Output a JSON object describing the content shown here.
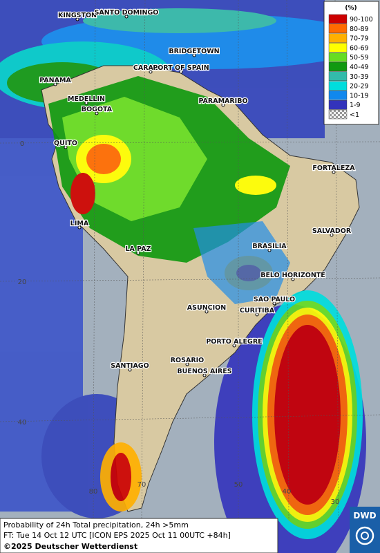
{
  "legend": {
    "title": "(%)",
    "items": [
      {
        "label": "90-100",
        "color": "#cc0000"
      },
      {
        "label": "80-89",
        "color": "#ff6a00"
      },
      {
        "label": "70-79",
        "color": "#ffb000"
      },
      {
        "label": "60-69",
        "color": "#ffff00"
      },
      {
        "label": "50-59",
        "color": "#66dd22"
      },
      {
        "label": "40-49",
        "color": "#119911"
      },
      {
        "label": "30-39",
        "color": "#33bbaa"
      },
      {
        "label": "20-29",
        "color": "#00dddd"
      },
      {
        "label": "10-19",
        "color": "#1188ee"
      },
      {
        "label": "1-9",
        "color": "#3333bb"
      },
      {
        "label": "<1",
        "color": "#bbbbbb"
      }
    ]
  },
  "cities": [
    "KINGSTON",
    "SANTO DOMINGO",
    "BRIDGETOWN",
    "CARACAS",
    "PORT OF SPAIN",
    "PANAMA",
    "MEDELLIN",
    "BOGOTA",
    "PARAMARIBO",
    "QUITO",
    "FORTALEZA",
    "LIMA",
    "SALVADOR",
    "LA PAZ",
    "BRASILIA",
    "BELO HORIZONTE",
    "SAO PAULO",
    "ASUNCION",
    "CURITIBA",
    "PORTO ALEGRE",
    "ROSARIO",
    "BUENOS AIRES",
    "SANTIAGO"
  ],
  "latitude_labels": [
    0,
    20,
    40
  ],
  "longitude_labels": [
    80,
    70,
    50,
    40,
    30
  ],
  "caption": {
    "line1": "Probability of 24h Total precipitation, 24h >5mm",
    "line2": "FT: Tue 14 Oct 12 UTC [ICON EPS 2025 Oct 11 00UTC +84h]",
    "copyright": "©2025 Deutscher Wetterdienst"
  },
  "logo": "DWD"
}
